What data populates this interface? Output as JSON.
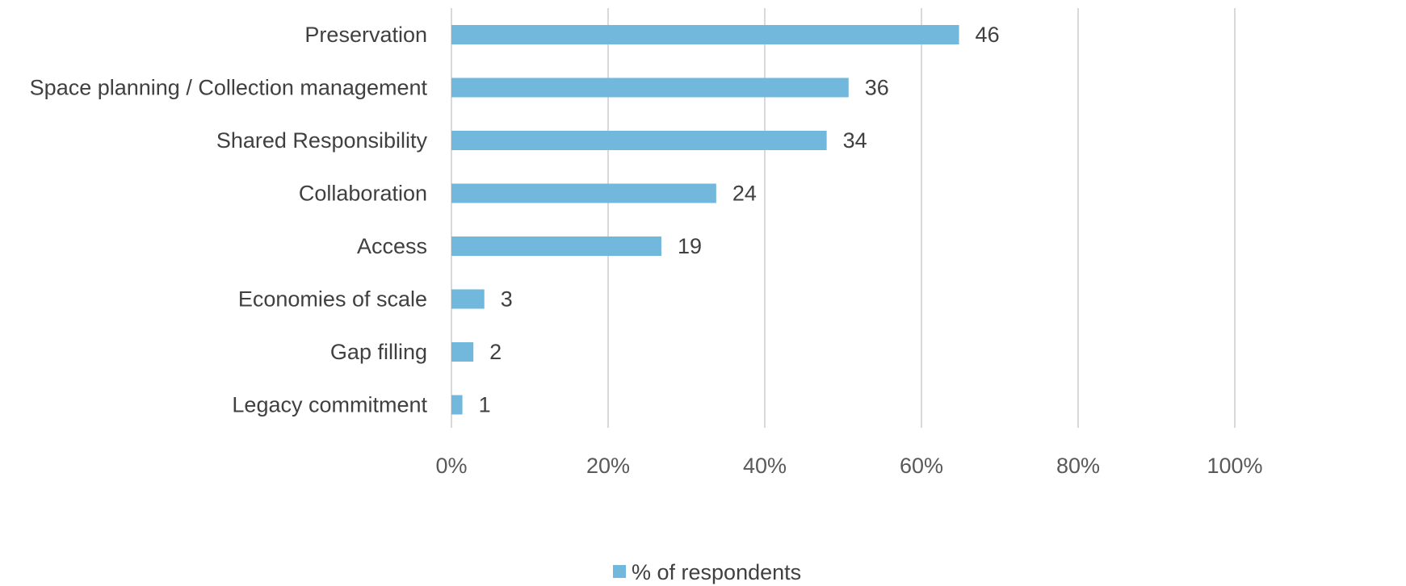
{
  "chart_data": {
    "type": "bar",
    "orientation": "horizontal",
    "categories": [
      "Preservation",
      "Space planning / Collection management",
      "Shared Responsibility",
      "Collaboration",
      "Access",
      "Economies of scale",
      "Gap filling",
      "Legacy commitment"
    ],
    "series": [
      {
        "name": "% of respondents",
        "color": "#72b8dc",
        "values": [
          64.8,
          50.7,
          47.9,
          33.8,
          26.8,
          4.2,
          2.8,
          1.4
        ],
        "data_labels": [
          "46",
          "36",
          "34",
          "24",
          "19",
          "3",
          "2",
          "1"
        ]
      }
    ],
    "xlim": [
      0,
      100
    ],
    "x_ticks": [
      "0%",
      "20%",
      "40%",
      "60%",
      "80%",
      "100%"
    ],
    "title": "",
    "xlabel": "",
    "ylabel": "",
    "grid": true,
    "legend_position": "bottom"
  }
}
